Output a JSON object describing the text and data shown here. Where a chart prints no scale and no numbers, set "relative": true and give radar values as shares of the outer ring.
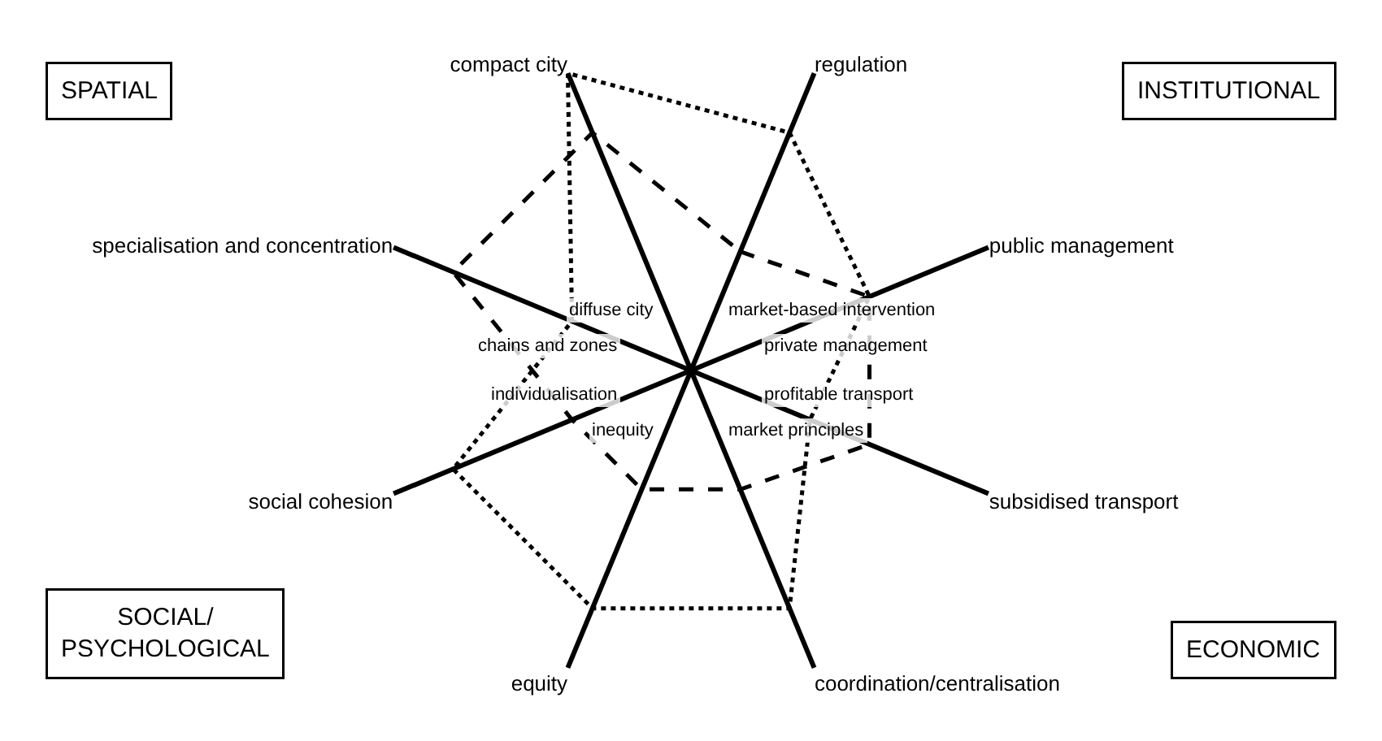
{
  "chart_data": {
    "type": "radar",
    "relative": true,
    "marker": "none",
    "categories": [
      "regulation",
      "public management",
      "subsidised transport",
      "coordination/centralisation",
      "equity",
      "social cohesion",
      "specialisation and concentration",
      "compact city"
    ],
    "series": [
      {
        "color": "#000000",
        "line_style": "dashed",
        "values": [
          0.4,
          0.6,
          0.6,
          0.4,
          0.4,
          0.4,
          0.8,
          0.8
        ]
      },
      {
        "color": "#000000",
        "line_style": "dotted",
        "values": [
          0.8,
          0.6,
          0.4,
          0.8,
          0.8,
          0.8,
          0.4,
          1.0
        ]
      }
    ],
    "annotations": [
      "market-based intervention",
      "private management",
      "profitable transport",
      "market principles",
      "inequity",
      "individualisation",
      "chains and zones",
      "diffuse city",
      "INSTITUTIONAL",
      "ECONOMIC",
      "SOCIAL/ PSYCHOLOGICAL",
      "SPATIAL"
    ]
  }
}
